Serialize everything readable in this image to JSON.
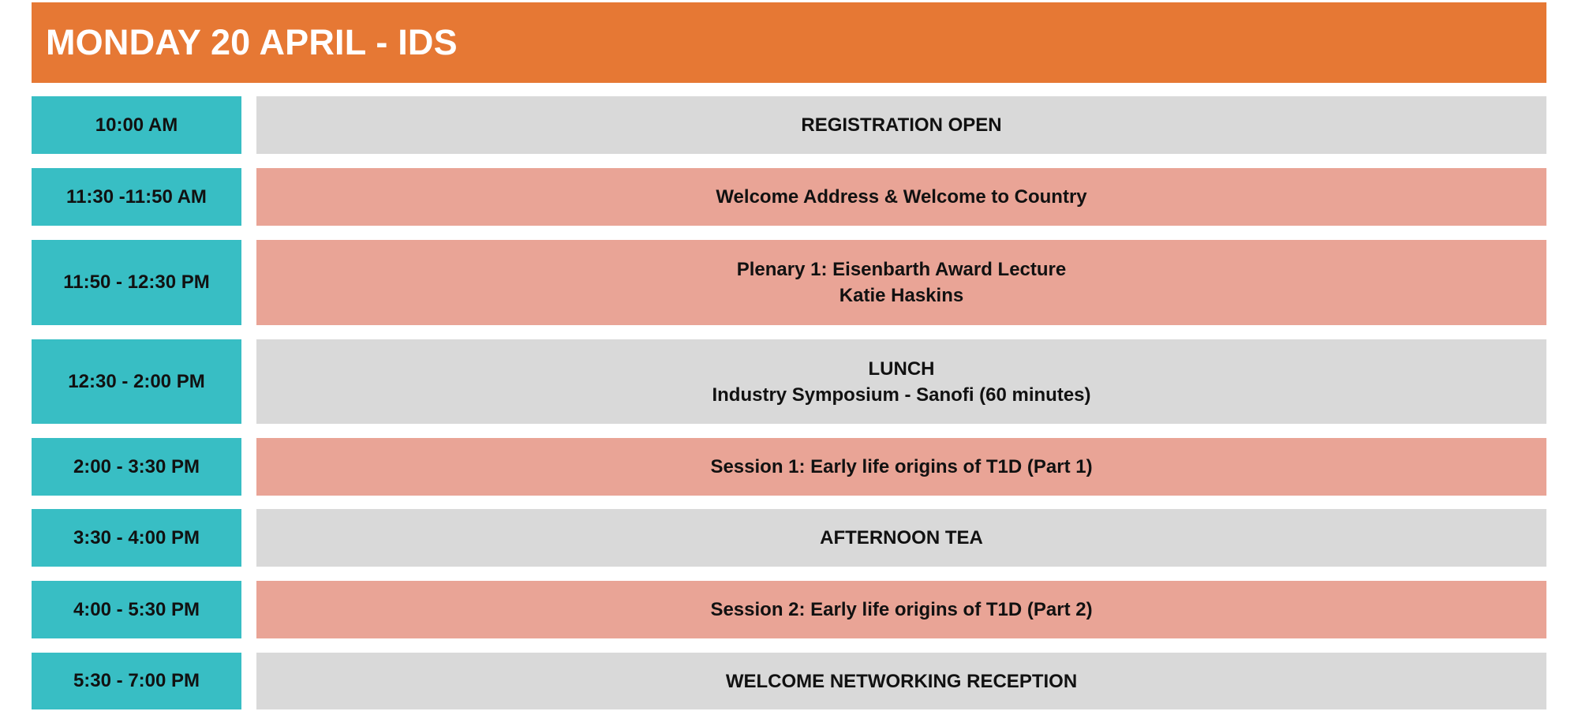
{
  "title": "MONDAY 20 APRIL - IDS",
  "colors": {
    "header": "#e67834",
    "time": "#38bec4",
    "session": "#e9a496",
    "break": "#d9d9d9"
  },
  "rows": [
    {
      "time": "10:00 AM",
      "lines": [
        "REGISTRATION OPEN"
      ],
      "type": "break"
    },
    {
      "time": "11:30 -11:50 AM",
      "lines": [
        "Welcome Address & Welcome to Country"
      ],
      "type": "session"
    },
    {
      "time": "11:50 - 12:30 PM",
      "lines": [
        "Plenary 1: Eisenbarth Award Lecture",
        "Katie Haskins"
      ],
      "type": "session"
    },
    {
      "time": "12:30 - 2:00 PM",
      "lines": [
        "LUNCH",
        "Industry Symposium - Sanofi (60 minutes)"
      ],
      "type": "break"
    },
    {
      "time": "2:00 - 3:30 PM",
      "lines": [
        "Session 1: Early life origins of T1D (Part 1)"
      ],
      "type": "session"
    },
    {
      "time": "3:30 - 4:00 PM",
      "lines": [
        "AFTERNOON TEA"
      ],
      "type": "break"
    },
    {
      "time": "4:00 - 5:30 PM",
      "lines": [
        "Session 2: Early life origins of T1D (Part 2)"
      ],
      "type": "session"
    },
    {
      "time": "5:30 - 7:00 PM",
      "lines": [
        "WELCOME NETWORKING RECEPTION"
      ],
      "type": "break"
    }
  ]
}
